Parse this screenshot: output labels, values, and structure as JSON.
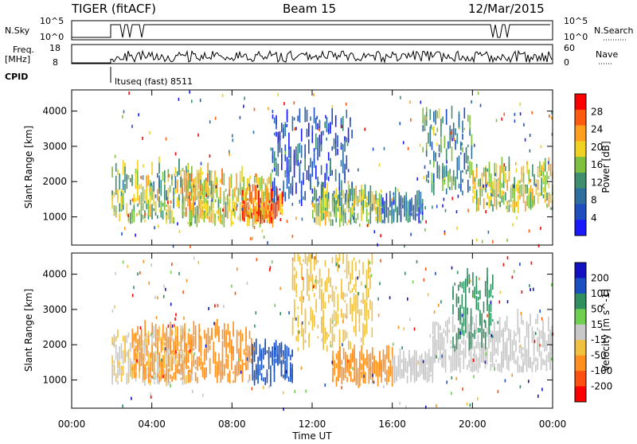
{
  "header": {
    "radar": "TIGER (fitACF)",
    "beam": "Beam 15",
    "date": "12/Mar/2015"
  },
  "panels": {
    "nsky_label": "N.Sky",
    "nsky_ticks": [
      "10^5",
      "10^0"
    ],
    "nsearch_label": "N.Search",
    "nsearch_ticks": [
      "10^5",
      "10^0"
    ],
    "freq_label_1": "Freq.",
    "freq_label_2": "[MHz]",
    "freq_ticks": [
      "18",
      "8"
    ],
    "nave_label": "Nave",
    "nave_ticks": [
      "60",
      "0"
    ],
    "cpid_label": "CPID",
    "cpid_value": "ltuseq (fast) 8511"
  },
  "colors": {
    "power": [
      "#1a1aff",
      "#1f4fbf",
      "#2f6f9f",
      "#3f8f6f",
      "#7fbf3f",
      "#f0d020",
      "#ff9f20",
      "#ff5a10",
      "#ff0000"
    ],
    "velocity": [
      "#1010c0",
      "#1a50c0",
      "#2f8f5f",
      "#6fcf4f",
      "#c8c8c8",
      "#f0c040",
      "#ff9020",
      "#ff5010",
      "#ff0000"
    ]
  },
  "chart_data": [
    {
      "type": "heatmap",
      "title": "Power",
      "ylabel": "Slant Range [km]",
      "yticks": [
        "1000",
        "2000",
        "3000",
        "4000"
      ],
      "ylim": [
        200,
        4600
      ],
      "colorbar_label": "Power [dB]",
      "colorbar_ticks": [
        "4",
        "8",
        "12",
        "16",
        "20",
        "24",
        "28"
      ],
      "colorbar_range": [
        0,
        32
      ],
      "regions": [
        {
          "t": [
            2.0,
            7.0
          ],
          "range": [
            800,
            2300
          ],
          "level": 16
        },
        {
          "t": [
            5.5,
            10.0
          ],
          "range": [
            700,
            2000
          ],
          "level": 20
        },
        {
          "t": [
            8.5,
            10.5
          ],
          "range": [
            800,
            1500
          ],
          "level": 26
        },
        {
          "t": [
            10.0,
            14.0
          ],
          "range": [
            1300,
            3800
          ],
          "level": 6
        },
        {
          "t": [
            12.0,
            15.5
          ],
          "range": [
            700,
            1600
          ],
          "level": 16
        },
        {
          "t": [
            15.5,
            17.5
          ],
          "range": [
            800,
            1400
          ],
          "level": 8
        },
        {
          "t": [
            17.5,
            20.0
          ],
          "range": [
            1600,
            3800
          ],
          "level": 12
        },
        {
          "t": [
            20.0,
            24.0
          ],
          "range": [
            1100,
            2300
          ],
          "level": 18
        }
      ]
    },
    {
      "type": "heatmap",
      "title": "Velocity",
      "xlabel": "Time UT",
      "xticks": [
        "00:00",
        "04:00",
        "08:00",
        "12:00",
        "16:00",
        "20:00",
        "00:00"
      ],
      "xlim": [
        0,
        24
      ],
      "ylabel": "Slant Range [km]",
      "yticks": [
        "1000",
        "2000",
        "3000",
        "4000"
      ],
      "ylim": [
        200,
        4600
      ],
      "colorbar_label": "Velocity [m s^-1]",
      "colorbar_ticks": [
        "200",
        "100",
        "50",
        "15",
        "-15",
        "-50",
        "-100",
        "-200"
      ],
      "regions": [
        {
          "t": [
            2.0,
            6.0
          ],
          "range": [
            800,
            2200
          ],
          "level": -15
        },
        {
          "t": [
            3.0,
            9.0
          ],
          "range": [
            900,
            2300
          ],
          "level": -60
        },
        {
          "t": [
            9.0,
            11.0
          ],
          "range": [
            800,
            1800
          ],
          "level": 120
        },
        {
          "t": [
            11.0,
            15.0
          ],
          "range": [
            1800,
            4400
          ],
          "level": -40
        },
        {
          "t": [
            13.0,
            16.0
          ],
          "range": [
            800,
            1600
          ],
          "level": -80
        },
        {
          "t": [
            16.0,
            18.0
          ],
          "range": [
            900,
            1500
          ],
          "level": 0
        },
        {
          "t": [
            18.0,
            24.0
          ],
          "range": [
            1200,
            2600
          ],
          "level": 0
        },
        {
          "t": [
            19.0,
            21.0
          ],
          "range": [
            1800,
            3800
          ],
          "level": 60
        }
      ]
    }
  ]
}
